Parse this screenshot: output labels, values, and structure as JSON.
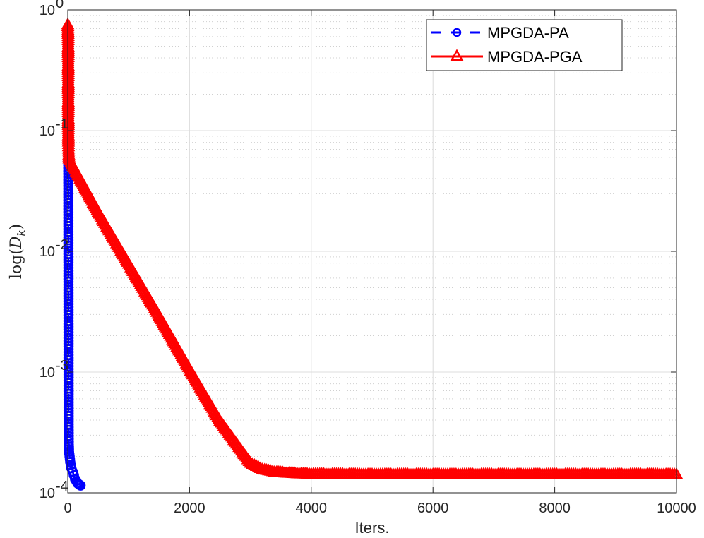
{
  "chart_data": {
    "type": "line",
    "title": "",
    "xlabel": "Iters.",
    "ylabel": "log(D_k)",
    "ylabel_parts": {
      "main": "log(",
      "var": "D",
      "sub": "k",
      "close": ")"
    },
    "xlim": [
      0,
      10000
    ],
    "ylim": [
      0.0001,
      1
    ],
    "yscale": "log",
    "grid": true,
    "minor_grid": true,
    "legend_position": "top-right",
    "x_ticks": [
      0,
      2000,
      4000,
      6000,
      8000,
      10000
    ],
    "x_tick_labels": [
      "0",
      "2000",
      "4000",
      "6000",
      "8000",
      "10000"
    ],
    "y_ticks": [
      0.0001,
      0.001,
      0.01,
      0.1,
      1
    ],
    "y_tick_labels": [
      {
        "base": "10",
        "exp": "-4"
      },
      {
        "base": "10",
        "exp": "-3"
      },
      {
        "base": "10",
        "exp": "-2"
      },
      {
        "base": "10",
        "exp": "-1"
      },
      {
        "base": "10",
        "exp": "0"
      }
    ],
    "series": [
      {
        "name": "MPGDA-PA",
        "color": "#0000ff",
        "line_style": "dashed",
        "marker": "circle",
        "x": [
          0,
          1,
          2,
          3,
          4,
          5,
          6,
          7,
          8,
          9,
          10,
          11,
          12,
          13,
          14,
          16,
          18,
          20,
          30,
          40,
          60,
          80,
          100,
          120,
          140,
          160,
          180,
          200,
          210
        ],
        "y": [
          0.65,
          0.6,
          0.55,
          0.48,
          0.33,
          0.25,
          0.17,
          0.11,
          0.065,
          0.035,
          0.017,
          0.0073,
          0.0028,
          0.00095,
          0.00035,
          0.00025,
          0.00024,
          0.00022,
          0.0002,
          0.00018,
          0.00016,
          0.00015,
          0.00014,
          0.00013,
          0.000125,
          0.00012,
          0.000118,
          0.000116,
          0.000115
        ]
      },
      {
        "name": "MPGDA-PGA",
        "color": "#ff0000",
        "line_style": "solid",
        "marker": "triangle",
        "x": [
          0,
          2,
          4,
          6,
          8,
          10,
          12,
          20,
          500,
          1000,
          1500,
          2000,
          2500,
          3000,
          3200,
          3400,
          3600,
          3800,
          4000,
          5000,
          6000,
          7000,
          8000,
          9000,
          10000
        ],
        "y": [
          0.75,
          0.7,
          0.65,
          0.6,
          0.11,
          0.08,
          0.07,
          0.058,
          0.021,
          0.0078,
          0.0029,
          0.00105,
          0.00039,
          0.000175,
          0.000155,
          0.000148,
          0.000145,
          0.000143,
          0.000142,
          0.000141,
          0.000141,
          0.000141,
          0.000141,
          0.000141,
          0.000141
        ]
      }
    ]
  }
}
